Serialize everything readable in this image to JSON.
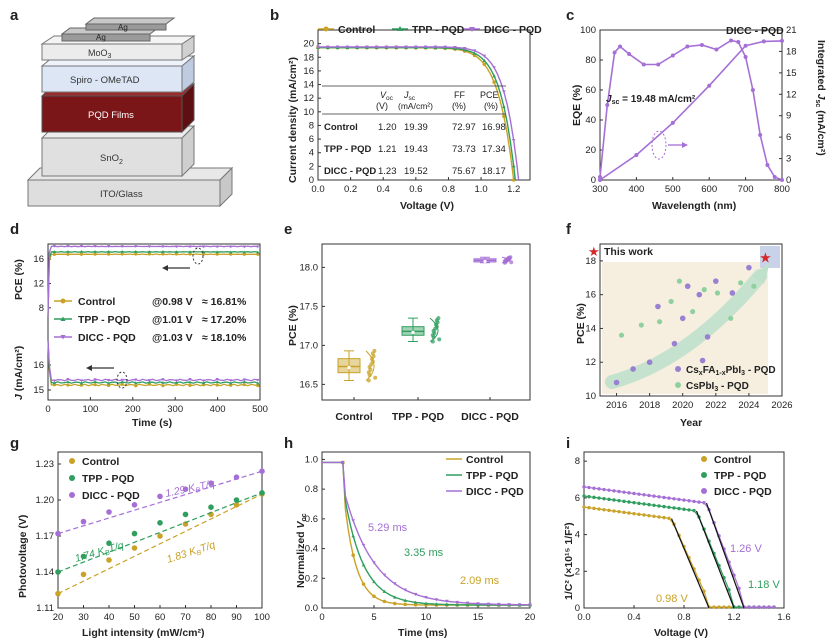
{
  "colors": {
    "control": "#c9a227",
    "tpp": "#2f9e5e",
    "dicc": "#a56fd6",
    "star": "#d62828",
    "pqd": "#7a1518",
    "spiro": "#dce6f5",
    "gray": "#d9d9d9"
  },
  "panel_labels": {
    "a": "a",
    "b": "b",
    "c": "c",
    "d": "d",
    "e": "e",
    "f": "f",
    "g": "g",
    "h": "h",
    "i": "i"
  },
  "chart_data": [
    {
      "panel": "a",
      "type": "diagram",
      "layers": [
        "Ag",
        "Ag",
        "MoO3",
        "Spiro - OMeTAD",
        "PQD Films",
        "SnO2",
        "ITO/Glass"
      ]
    },
    {
      "panel": "b",
      "type": "line",
      "xlabel": "Voltage (V)",
      "ylabel": "Current density (mA/cm²)",
      "xlim": [
        0,
        1.3
      ],
      "ylim": [
        0,
        22
      ],
      "xticks": [
        "0.0",
        "0.2",
        "0.4",
        "0.6",
        "0.8",
        "1.0",
        "1.2"
      ],
      "yticks": [
        "0",
        "2",
        "4",
        "6",
        "8",
        "10",
        "12",
        "14",
        "16",
        "18",
        "20"
      ],
      "legend": [
        "Control",
        "TPP - PQD",
        "DICC - PQD"
      ],
      "series": [
        {
          "name": "Control",
          "jsc": 19.39,
          "voc": 1.2
        },
        {
          "name": "TPP - PQD",
          "jsc": 19.43,
          "voc": 1.21
        },
        {
          "name": "DICC - PQD",
          "jsc": 19.52,
          "voc": 1.23
        }
      ],
      "table": {
        "headers": [
          "Voc (V)",
          "Jsc (mA/cm²)",
          "FF (%)",
          "PCE (%)"
        ],
        "rows": [
          [
            "Control",
            "1.20",
            "19.39",
            "72.97",
            "16.98"
          ],
          [
            "TPP - PQD",
            "1.21",
            "19.43",
            "73.73",
            "17.34"
          ],
          [
            "DICC - PQD",
            "1.23",
            "19.52",
            "75.67",
            "18.17"
          ]
        ]
      }
    },
    {
      "panel": "c",
      "type": "line",
      "xlabel": "Wavelength (nm)",
      "ylabel": "EQE (%)",
      "y2label": "Integrated Jsc (mA/cm²)",
      "xlim": [
        300,
        800
      ],
      "ylim": [
        0,
        100
      ],
      "y2lim": [
        0,
        21
      ],
      "xticks": [
        "300",
        "400",
        "500",
        "600",
        "700",
        "800"
      ],
      "yticks": [
        "0",
        "20",
        "40",
        "60",
        "80",
        "100"
      ],
      "y2ticks": [
        "0",
        "3",
        "6",
        "9",
        "12",
        "15",
        "18",
        "21"
      ],
      "title": "DICC - PQD",
      "annotation": "Jsc = 19.48 mA/cm²",
      "eqe": [
        [
          300,
          2
        ],
        [
          320,
          50
        ],
        [
          340,
          85
        ],
        [
          355,
          89
        ],
        [
          380,
          84
        ],
        [
          420,
          77
        ],
        [
          460,
          77
        ],
        [
          500,
          83
        ],
        [
          540,
          89
        ],
        [
          580,
          90
        ],
        [
          620,
          87
        ],
        [
          660,
          93
        ],
        [
          680,
          92
        ],
        [
          700,
          82
        ],
        [
          720,
          60
        ],
        [
          740,
          30
        ],
        [
          760,
          10
        ],
        [
          780,
          2
        ],
        [
          800,
          0
        ]
      ],
      "jsc": [
        [
          300,
          0
        ],
        [
          400,
          3.5
        ],
        [
          500,
          8.0
        ],
        [
          600,
          13.2
        ],
        [
          700,
          18.8
        ],
        [
          750,
          19.4
        ],
        [
          800,
          19.48
        ]
      ]
    },
    {
      "panel": "d",
      "type": "line",
      "xlabel": "Time (s)",
      "ylabel_top": "PCE (%)",
      "ylabel_bottom": "J (mA/cm²)",
      "xlim": [
        0,
        500
      ],
      "xticks": [
        "0",
        "100",
        "200",
        "300",
        "400",
        "500"
      ],
      "yticks_top": [
        "8",
        "12",
        "16"
      ],
      "yticks_bottom": [
        "15",
        "16"
      ],
      "legend": [
        {
          "name": "Control",
          "v": "@0.98 V",
          "p": "≈ 16.81%"
        },
        {
          "name": "TPP - PQD",
          "v": "@1.01 V",
          "p": "≈ 17.20%"
        },
        {
          "name": "DICC - PQD",
          "v": "@1.03 V",
          "p": "≈ 18.10%"
        }
      ],
      "pce": [
        16.81,
        17.2,
        18.1
      ],
      "j": [
        15.2,
        15.3,
        15.4
      ]
    },
    {
      "panel": "e",
      "type": "box",
      "ylabel": "PCE (%)",
      "ylim": [
        16.3,
        18.3
      ],
      "yticks": [
        "16.5",
        "17.0",
        "17.5",
        "18.0"
      ],
      "categories": [
        "Control",
        "TPP - PQD",
        "DICC - PQD"
      ],
      "boxes": [
        {
          "min": 16.55,
          "q1": 16.65,
          "med": 16.73,
          "q3": 16.83,
          "max": 16.93
        },
        {
          "min": 17.05,
          "q1": 17.13,
          "med": 17.18,
          "q3": 17.24,
          "max": 17.35
        },
        {
          "min": 18.06,
          "q1": 18.07,
          "med": 18.09,
          "q3": 18.11,
          "max": 18.13
        }
      ]
    },
    {
      "panel": "f",
      "type": "scatter",
      "xlabel": "Year",
      "ylabel": "PCE (%)",
      "xlim": [
        2015,
        2026
      ],
      "ylim": [
        10,
        19
      ],
      "xticks": [
        "2016",
        "2018",
        "2020",
        "2022",
        "2024",
        "2026"
      ],
      "yticks": [
        "10",
        "12",
        "14",
        "16",
        "18"
      ],
      "legend": [
        "This work",
        "CsxFA1-xPbI3 - PQD",
        "CsPbI3 - PQD"
      ],
      "purple": [
        [
          2016,
          10.8
        ],
        [
          2017,
          11.6
        ],
        [
          2018,
          12.0
        ],
        [
          2019.5,
          13.1
        ],
        [
          2020,
          14.6
        ],
        [
          2020.3,
          16.5
        ],
        [
          2021,
          16.0
        ],
        [
          2021.5,
          13.5
        ],
        [
          2022,
          16.8
        ],
        [
          2023,
          16.1
        ],
        [
          2024,
          17.6
        ],
        [
          2018.5,
          15.3
        ],
        [
          2021.2,
          12.1
        ]
      ],
      "green": [
        [
          2016.3,
          13.6
        ],
        [
          2017.5,
          14.2
        ],
        [
          2018.6,
          14.4
        ],
        [
          2019.3,
          15.6
        ],
        [
          2019.8,
          16.8
        ],
        [
          2020.6,
          15.0
        ],
        [
          2021.3,
          16.3
        ],
        [
          2022.1,
          16.1
        ],
        [
          2022.9,
          14.6
        ],
        [
          2023.5,
          16.7
        ],
        [
          2024.3,
          16.5
        ]
      ],
      "this_work": [
        2025,
        18.2
      ]
    },
    {
      "panel": "g",
      "type": "scatter",
      "xlabel": "Light intensity (mW/cm²)",
      "ylabel": "Photovoltage (V)",
      "xlim": [
        20,
        100
      ],
      "ylim": [
        1.11,
        1.24
      ],
      "xticks": [
        "20",
        "30",
        "40",
        "50",
        "60",
        "70",
        "80",
        "90",
        "100"
      ],
      "yticks": [
        "1.11",
        "1.14",
        "1.17",
        "1.20",
        "1.23"
      ],
      "legend": [
        "Control",
        "TPP - PQD",
        "DICC - PQD"
      ],
      "annotations": [
        "1.29 KBT/q",
        "1.74 KBT/q",
        "1.83 KBT/q"
      ],
      "series": [
        {
          "name": "Control",
          "x": [
            20,
            30,
            40,
            50,
            60,
            70,
            80,
            90,
            100
          ],
          "y": [
            1.122,
            1.138,
            1.15,
            1.16,
            1.17,
            1.18,
            1.188,
            1.196,
            1.205
          ]
        },
        {
          "name": "TPP - PQD",
          "x": [
            20,
            30,
            40,
            50,
            60,
            70,
            80,
            90,
            100
          ],
          "y": [
            1.14,
            1.153,
            1.164,
            1.172,
            1.181,
            1.188,
            1.194,
            1.2,
            1.206
          ]
        },
        {
          "name": "DICC - PQD",
          "x": [
            20,
            30,
            40,
            50,
            60,
            70,
            80,
            90,
            100
          ],
          "y": [
            1.172,
            1.182,
            1.19,
            1.196,
            1.203,
            1.209,
            1.214,
            1.219,
            1.224
          ]
        }
      ]
    },
    {
      "panel": "h",
      "type": "line",
      "xlabel": "Time (ms)",
      "ylabel": "Normalized Voc",
      "xlim": [
        0,
        20
      ],
      "ylim": [
        0,
        1.05
      ],
      "xticks": [
        "0",
        "5",
        "10",
        "15",
        "20"
      ],
      "yticks": [
        "0.0",
        "0.2",
        "0.4",
        "0.6",
        "0.8",
        "1.0"
      ],
      "legend": [
        "Control",
        "TPP - PQD",
        "DICC - PQD"
      ],
      "tau": [
        2.09,
        3.35,
        5.29
      ],
      "labels": [
        "2.09 ms",
        "3.35 ms",
        "5.29 ms"
      ]
    },
    {
      "panel": "i",
      "type": "line",
      "xlabel": "Voltage (V)",
      "ylabel": "1/C² (×10¹⁵ 1/F²)",
      "xlim": [
        0,
        1.6
      ],
      "ylim": [
        0,
        8.5
      ],
      "xticks": [
        "0.0",
        "0.4",
        "0.8",
        "1.2",
        "1.6"
      ],
      "yticks": [
        "0",
        "2",
        "4",
        "6",
        "8"
      ],
      "legend": [
        "Control",
        "TPP - PQD",
        "DICC - PQD"
      ],
      "vbi": [
        0.98,
        1.18,
        1.26
      ],
      "labels": [
        "0.98 V",
        "1.18 V",
        "1.26 V"
      ],
      "plateau": [
        5.5,
        6.1,
        6.6
      ]
    }
  ]
}
